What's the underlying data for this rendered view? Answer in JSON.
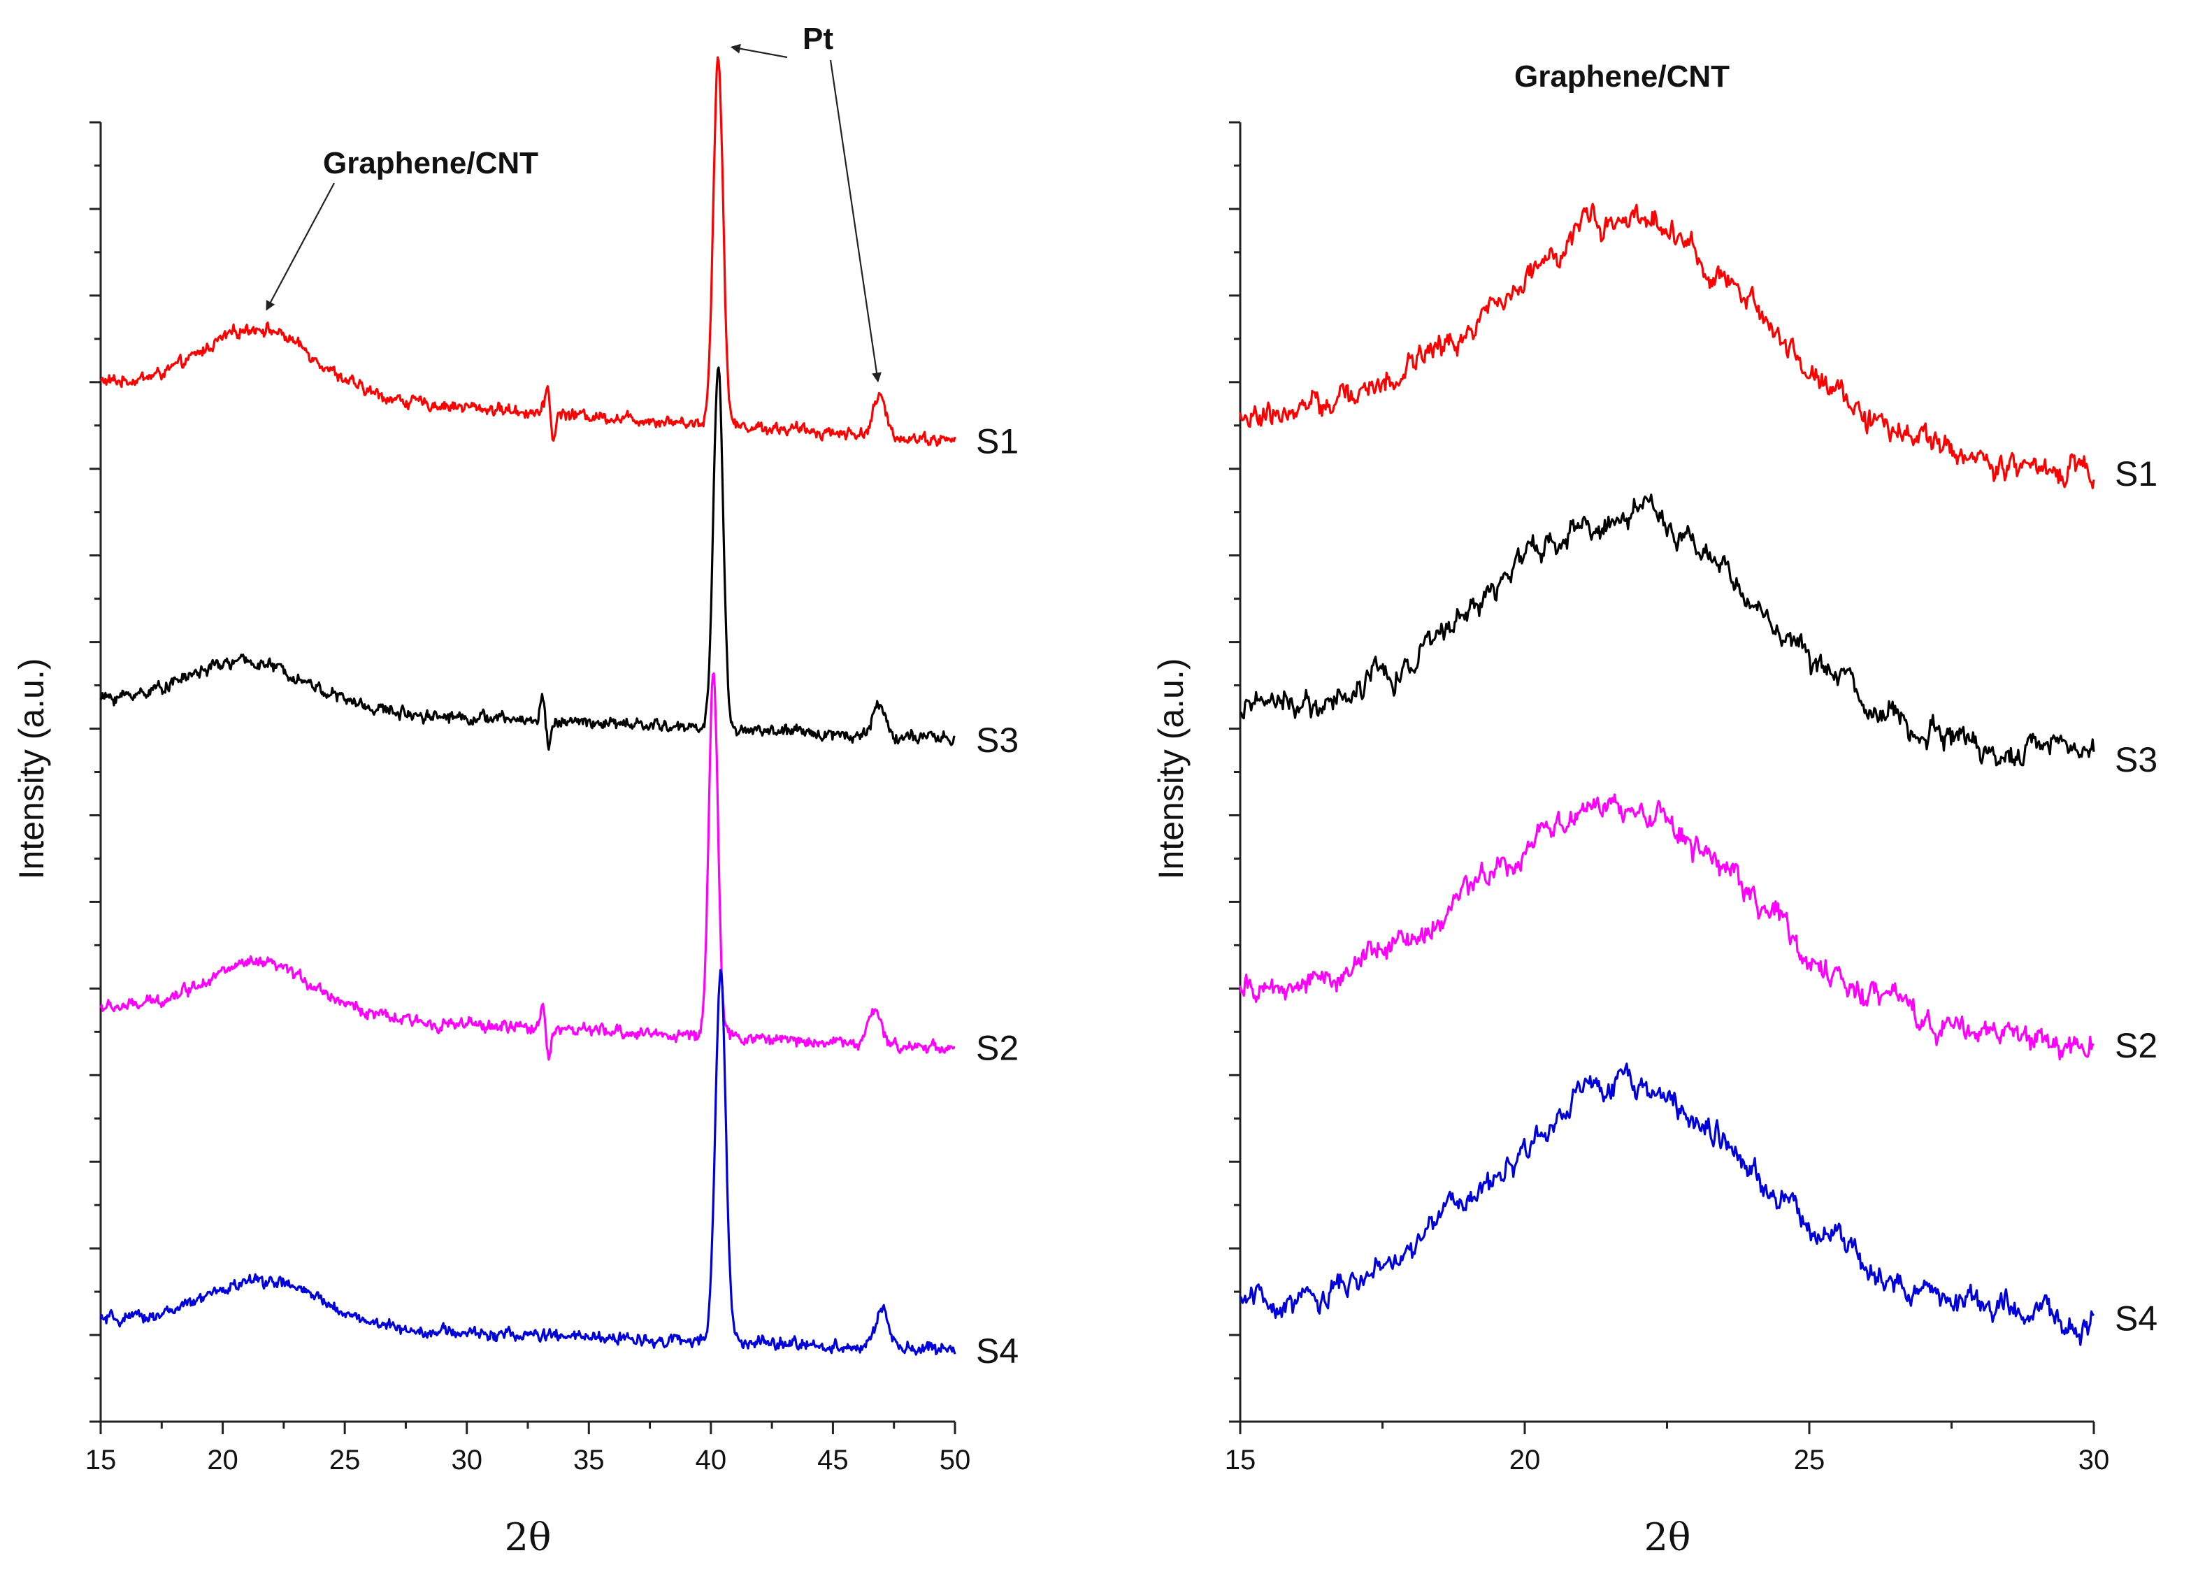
{
  "chart_data": [
    {
      "type": "line",
      "panel": "left",
      "xlabel": "2θ",
      "ylabel": "Intensity (a.u.)",
      "xlim": [
        15,
        50
      ],
      "xticks": [
        15,
        20,
        25,
        30,
        35,
        40,
        45,
        50
      ],
      "series": [
        {
          "name": "S1",
          "color": "#ff0000",
          "baseline": 0.8,
          "tail": 0.755,
          "hump": {
            "center": 21.5,
            "width": 3.2,
            "height": 0.05
          },
          "peaks": [
            {
              "x": 40.3,
              "h": 0.285,
              "w": 0.28
            },
            {
              "x": 46.9,
              "h": 0.03,
              "w": 0.35
            }
          ],
          "glitch": 33.3
        },
        {
          "name": "S3",
          "color": "#000000",
          "baseline": 0.555,
          "tail": 0.525,
          "hump": {
            "center": 21.0,
            "width": 3.5,
            "height": 0.035
          },
          "peaks": [
            {
              "x": 40.3,
              "h": 0.28,
              "w": 0.28
            },
            {
              "x": 46.9,
              "h": 0.025,
              "w": 0.35
            }
          ],
          "glitch": 33.1
        },
        {
          "name": "S2",
          "color": "#ff00ff",
          "baseline": 0.318,
          "tail": 0.288,
          "hump": {
            "center": 21.5,
            "width": 3.3,
            "height": 0.04
          },
          "peaks": [
            {
              "x": 40.1,
              "h": 0.285,
              "w": 0.26
            },
            {
              "x": 46.7,
              "h": 0.025,
              "w": 0.35
            }
          ],
          "glitch": 33.1
        },
        {
          "name": "S4",
          "color": "#0000dd",
          "baseline": 0.078,
          "tail": 0.055,
          "hump": {
            "center": 21.7,
            "width": 3.3,
            "height": 0.035
          },
          "peaks": [
            {
              "x": 40.4,
              "h": 0.285,
              "w": 0.3
            },
            {
              "x": 47.0,
              "h": 0.03,
              "w": 0.35
            }
          ],
          "glitch": null
        }
      ],
      "annotations": [
        {
          "text": "Graphene/CNT",
          "points_to": [
            {
              "x": 21.8,
              "series": "S1"
            }
          ]
        },
        {
          "text": "Pt",
          "points_to": [
            {
              "x": 40.3,
              "series": "S1"
            },
            {
              "x": 46.9,
              "series": "S1"
            }
          ]
        }
      ]
    },
    {
      "type": "line",
      "panel": "right",
      "title": "Graphene/CNT",
      "xlabel": "2θ",
      "ylabel": "Intensity (a.u.)",
      "xlim": [
        15,
        30
      ],
      "xticks": [
        15,
        20,
        25,
        30
      ],
      "series": [
        {
          "name": "S1",
          "color": "#ff0000",
          "baseline": 0.77,
          "hump": {
            "center": 21.8,
            "width": 3.4,
            "height": 0.17
          },
          "end": 0.73
        },
        {
          "name": "S3",
          "color": "#000000",
          "baseline": 0.55,
          "hump": {
            "center": 21.8,
            "width": 3.3,
            "height": 0.17
          },
          "end": 0.51
        },
        {
          "name": "S2",
          "color": "#ff00ff",
          "baseline": 0.33,
          "hump": {
            "center": 21.6,
            "width": 3.3,
            "height": 0.16
          },
          "end": 0.29
        },
        {
          "name": "S4",
          "color": "#0000dd",
          "baseline": 0.09,
          "hump": {
            "center": 21.8,
            "width": 3.3,
            "height": 0.17
          },
          "end": 0.08
        }
      ]
    }
  ]
}
